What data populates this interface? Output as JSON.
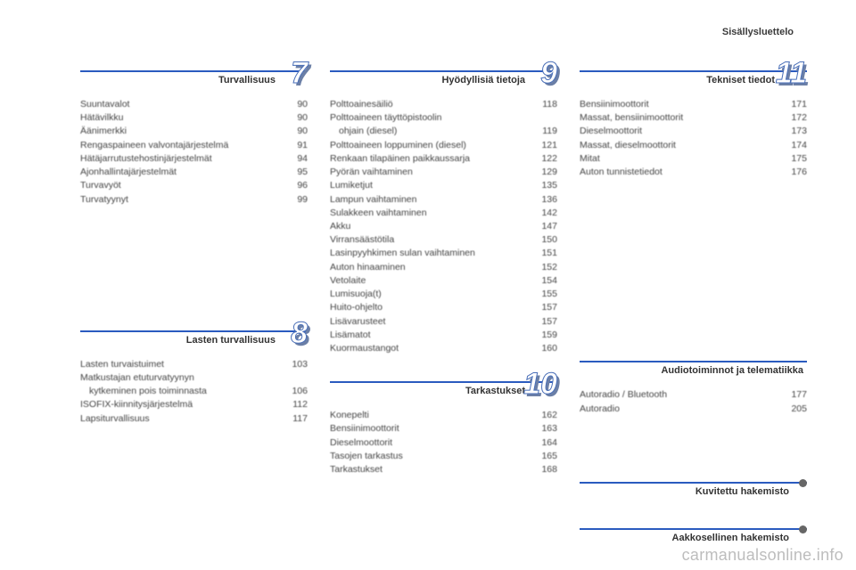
{
  "header": "Sisällysluettelo",
  "watermark": "carmanualsonline.info",
  "columns": [
    {
      "sections": [
        {
          "title": "Turvallisuus",
          "number": "7",
          "has_number": true,
          "items": [
            {
              "label": "Suuntavalot",
              "page": "90"
            },
            {
              "label": "Hätävilkku",
              "page": "90"
            },
            {
              "label": "Äänimerkki",
              "page": "90"
            },
            {
              "label": "Rengaspaineen valvontajärjestelmä",
              "page": "91"
            },
            {
              "label": "Hätäjarrutustehostinjärjestelmät",
              "page": "94"
            },
            {
              "label": "Ajonhallintajärjestelmät",
              "page": "95"
            },
            {
              "label": "Turvavyöt",
              "page": "96"
            },
            {
              "label": "Turvatyynyt",
              "page": "99"
            }
          ]
        },
        {
          "title": "Lasten turvallisuus",
          "number": "8",
          "has_number": true,
          "spacer_before": 110,
          "items": [
            {
              "label": "Lasten turvaistuimet",
              "page": "103"
            },
            {
              "label": "Matkustajan etuturvatyynyn",
              "page": ""
            },
            {
              "label": "kytkeminen pois toiminnasta",
              "page": "106",
              "indent": true
            },
            {
              "label": "ISOFIX-kiinnitysjärjestelmä",
              "page": "112"
            },
            {
              "label": "Lapsiturvallisuus",
              "page": "117"
            }
          ]
        }
      ]
    },
    {
      "sections": [
        {
          "title": "Hyödyllisiä tietoja",
          "number": "9",
          "has_number": true,
          "items": [
            {
              "label": "Polttoainesäiliö",
              "page": "118"
            },
            {
              "label": "Polttoaineen täyttöpistoolin",
              "page": ""
            },
            {
              "label": "ohjain (diesel)",
              "page": "119",
              "indent": true
            },
            {
              "label": "Polttoaineen loppuminen (diesel)",
              "page": "121"
            },
            {
              "label": "Renkaan tilapäinen paikkaussarja",
              "page": "122"
            },
            {
              "label": "Pyörän vaihtaminen",
              "page": "129"
            },
            {
              "label": "Lumiketjut",
              "page": "135"
            },
            {
              "label": "Lampun vaihtaminen",
              "page": "136"
            },
            {
              "label": "Sulakkeen vaihtaminen",
              "page": "142"
            },
            {
              "label": "Akku",
              "page": "147"
            },
            {
              "label": "Virransäästötila",
              "page": "150"
            },
            {
              "label": "Lasinpyyhkimen sulan vaihtaminen",
              "page": "151"
            },
            {
              "label": "Auton hinaaminen",
              "page": "152"
            },
            {
              "label": "Vetolaite",
              "page": "154"
            },
            {
              "label": "Lumisuoja(t)",
              "page": "155"
            },
            {
              "label": "Huito-ohjelto",
              "page": "157"
            },
            {
              "label": "Lisävarusteet",
              "page": "157"
            },
            {
              "label": "Lisämatot",
              "page": "159"
            },
            {
              "label": "Kuormaustangot",
              "page": "160"
            }
          ]
        },
        {
          "title": "Tarkastukset",
          "number": "10",
          "has_number": true,
          "items": [
            {
              "label": "Konepelti",
              "page": "162"
            },
            {
              "label": "Bensiinimoottorit",
              "page": "163"
            },
            {
              "label": "Dieselmoottorit",
              "page": "164"
            },
            {
              "label": "Tasojen tarkastus",
              "page": "165"
            },
            {
              "label": "Tarkastukset",
              "page": "168"
            }
          ]
        }
      ]
    },
    {
      "sections": [
        {
          "title": "Tekniset tiedot",
          "number": "11",
          "has_number": true,
          "items": [
            {
              "label": "Bensiinimoottorit",
              "page": "171"
            },
            {
              "label": "Massat, bensiinimoottorit",
              "page": "172"
            },
            {
              "label": "Dieselmoottorit",
              "page": "173"
            },
            {
              "label": "Massat, dieselmoottorit",
              "page": "174"
            },
            {
              "label": "Mitat",
              "page": "175"
            },
            {
              "label": "Auton tunnistetiedot",
              "page": "176"
            }
          ]
        },
        {
          "title": "Audiotoiminnot ja telematiikka",
          "number": "",
          "has_number": false,
          "spacer_before": 175,
          "items": [
            {
              "label": "Autoradio / Bluetooth",
              "page": "177"
            },
            {
              "label": "Autoradio",
              "page": "205"
            }
          ]
        },
        {
          "title": "Kuvitettu hakemisto",
          "number": "",
          "has_number": false,
          "dot": true,
          "spacer_before": 45,
          "items": []
        },
        {
          "title": "Aakkosellinen hakemisto",
          "number": "",
          "has_number": false,
          "dot": true,
          "items": []
        }
      ]
    }
  ]
}
